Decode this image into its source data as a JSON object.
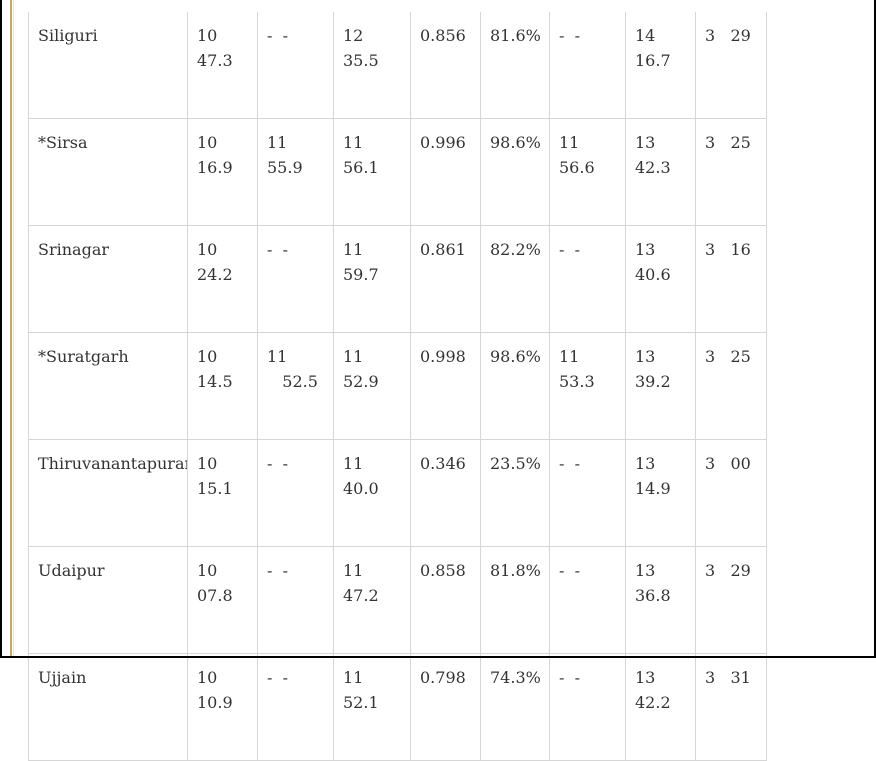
{
  "table": {
    "rows": [
      {
        "city": "Siliguri",
        "c1": "10\n47.3",
        "c2": "-  -",
        "c3": "12\n35.5",
        "c4": "0.856",
        "c5": "81.6%",
        "c6": "-  -",
        "c7": "14\n16.7",
        "c8": "3   29"
      },
      {
        "city": "*Sirsa",
        "c1": "10\n16.9",
        "c2": "11\n55.9",
        "c3": "11\n56.1",
        "c4": "0.996",
        "c5": "98.6%",
        "c6": "11\n56.6",
        "c7": "13\n42.3",
        "c8": "3   25"
      },
      {
        "city": "Srinagar",
        "c1": "10\n24.2",
        "c2": "-  -",
        "c3": "11\n59.7",
        "c4": "0.861",
        "c5": "82.2%",
        "c6": "-  -",
        "c7": "13\n40.6",
        "c8": "3   16"
      },
      {
        "city": "*Suratgarh",
        "c1": "10\n14.5",
        "c2": "11\n   52.5",
        "c3": "11\n52.9",
        "c4": "0.998",
        "c5": "98.6%",
        "c6": "11\n53.3",
        "c7": "13\n39.2",
        "c8": "3   25"
      },
      {
        "city": "Thiruvanantapuram",
        "c1": "10\n15.1",
        "c2": "-  -",
        "c3": "11\n40.0",
        "c4": "0.346",
        "c5": "23.5%",
        "c6": "-  -",
        "c7": "13\n14.9",
        "c8": "3   00"
      },
      {
        "city": "Udaipur",
        "c1": "10\n07.8",
        "c2": "-  -",
        "c3": "11\n47.2",
        "c4": "0.858",
        "c5": "81.8%",
        "c6": "-  -",
        "c7": "13\n36.8",
        "c8": "3   29"
      },
      {
        "city": "Ujjain",
        "c1": "10\n10.9",
        "c2": "-  -",
        "c3": "11\n52.1",
        "c4": "0.798",
        "c5": "74.3%",
        "c6": "-  -",
        "c7": "13\n42.2",
        "c8": "3   31"
      }
    ]
  }
}
